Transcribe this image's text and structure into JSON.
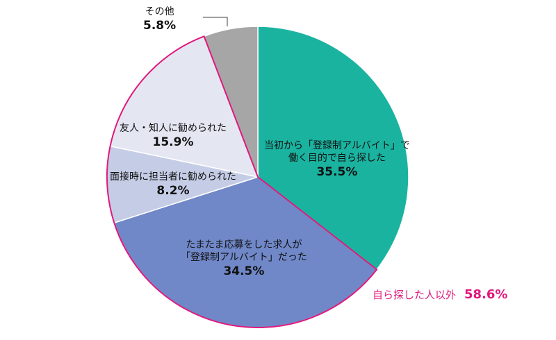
{
  "chart_data": {
    "type": "pie",
    "start_angle_deg": 0,
    "direction": "clockwise",
    "slices": [
      {
        "name_lines": [
          "当初から「登録制アルバイト」で",
          "働く目的で自ら探した"
        ],
        "value": 35.5,
        "value_label": "35.5%",
        "color": "#1ab3a0"
      },
      {
        "name_lines": [
          "たまたま応募をした求人が",
          "「登録制アルバイト」だった"
        ],
        "value": 34.5,
        "value_label": "34.5%",
        "color": "#7088c8"
      },
      {
        "name_lines": [
          "面接時に担当者に勧められた"
        ],
        "value": 8.2,
        "value_label": "8.2%",
        "color": "#c5cde6"
      },
      {
        "name_lines": [
          "友人・知人に勧められた"
        ],
        "value": 15.9,
        "value_label": "15.9%",
        "color": "#e4e7f2"
      },
      {
        "name_lines": [
          "その他"
        ],
        "value": 5.8,
        "value_label": "5.8%",
        "color": "#a6a6a6"
      }
    ],
    "group_highlight": {
      "label": "自ら探した人以外",
      "value_label": "58.6%",
      "slices": [
        1,
        2,
        3
      ],
      "color": "#e0197d"
    },
    "edge_color": "#ffffff"
  }
}
